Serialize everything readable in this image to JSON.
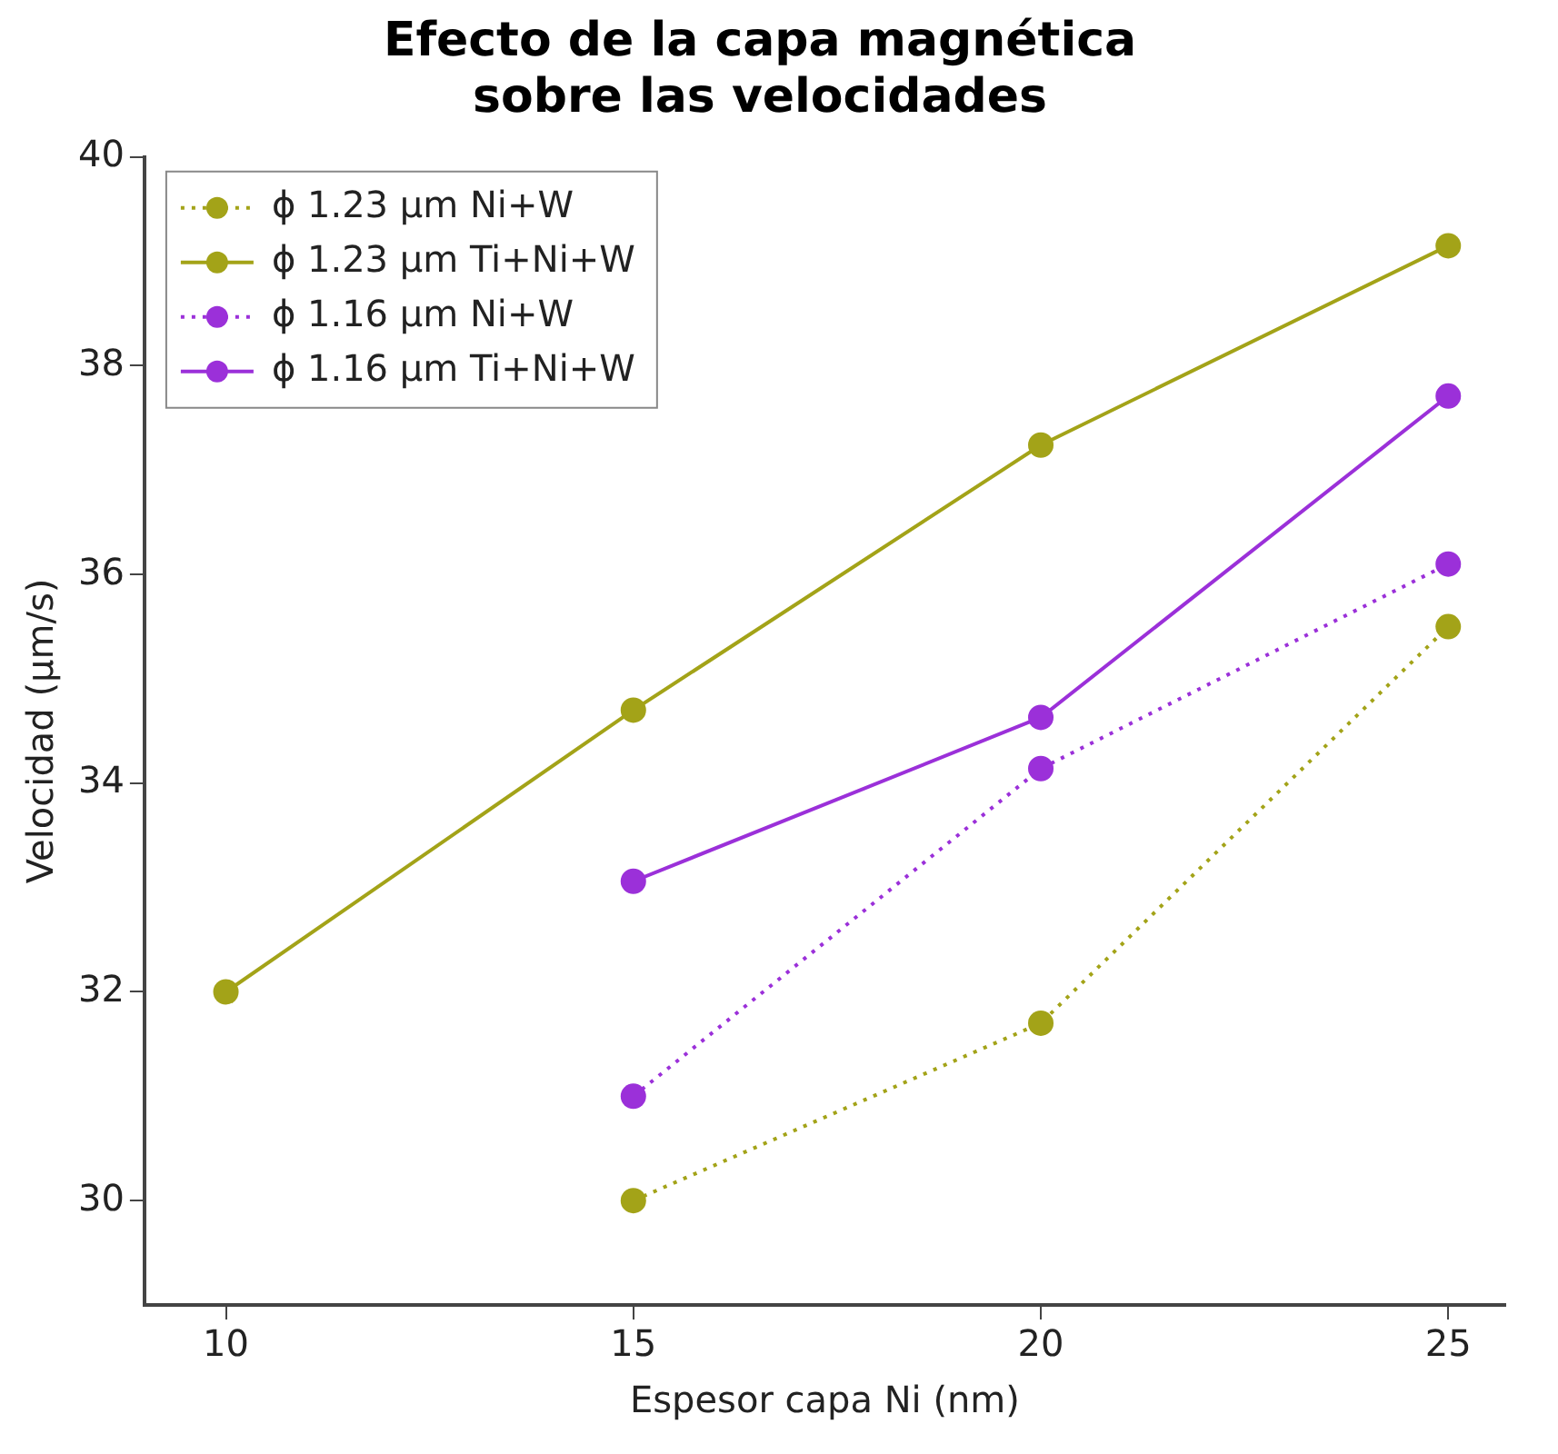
{
  "chart_data": {
    "type": "line",
    "title": "Efecto de la capa magnética\nsobre las velocidades",
    "xlabel": "Espesor capa Ni (nm)",
    "ylabel": "Velocidad (µm/s)",
    "xlim": [
      9,
      25.7
    ],
    "xticks": [
      10,
      15,
      20,
      25
    ],
    "ylim": [
      29,
      40
    ],
    "yticks": [
      30,
      32,
      34,
      36,
      38,
      40
    ],
    "grid": false,
    "legend": "top left",
    "marker": "circle",
    "series": [
      {
        "name": "ϕ 1.23 µm Ni+W",
        "color": "#a3a318",
        "x": [
          15,
          20,
          25
        ],
        "values": [
          30,
          31.7,
          35.5
        ],
        "line_style": "dotted"
      },
      {
        "name": "ϕ 1.23 µm Ti+Ni+W",
        "color": "#a3a318",
        "x": [
          10,
          15,
          20,
          25
        ],
        "values": [
          32,
          34.7,
          37.24,
          39.15
        ],
        "line_style": "solid"
      },
      {
        "name": "ϕ 1.16 µm Ni+W",
        "color": "#9b30d9",
        "x": [
          15,
          20,
          25
        ],
        "values": [
          31,
          34.14,
          36.1
        ],
        "line_style": "dotted"
      },
      {
        "name": "ϕ 1.16 µm Ti+Ni+W",
        "color": "#9b30d9",
        "x": [
          15,
          20,
          25
        ],
        "values": [
          33.06,
          34.63,
          37.71
        ],
        "line_style": "solid"
      }
    ]
  }
}
